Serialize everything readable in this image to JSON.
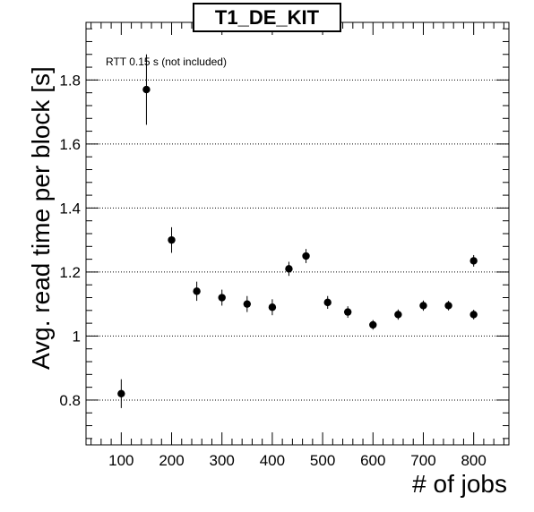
{
  "chart_data": {
    "type": "scatter",
    "title": "T1_DE_KIT",
    "xlabel": "# of jobs",
    "ylabel": "Avg. read time per block [s]",
    "annotation": "RTT 0.15 s (not included)",
    "xlim": [
      30,
      870
    ],
    "ylim": [
      0.66,
      1.98
    ],
    "x_ticks": [
      100,
      200,
      300,
      400,
      500,
      600,
      700,
      800
    ],
    "y_ticks": [
      0.8,
      1.0,
      1.2,
      1.4,
      1.6,
      1.8
    ],
    "y_tick_labels": [
      "0.8",
      "1",
      "1.2",
      "1.4",
      "1.6",
      "1.8"
    ],
    "grid": "horizontal-dotted",
    "series": [
      {
        "points": [
          {
            "x": 100,
            "y": 0.82,
            "err": 0.045
          },
          {
            "x": 150,
            "y": 1.77,
            "err": 0.11
          },
          {
            "x": 200,
            "y": 1.3,
            "err": 0.04
          },
          {
            "x": 250,
            "y": 1.14,
            "err": 0.03
          },
          {
            "x": 300,
            "y": 1.12,
            "err": 0.025
          },
          {
            "x": 350,
            "y": 1.1,
            "err": 0.025
          },
          {
            "x": 400,
            "y": 1.09,
            "err": 0.025
          },
          {
            "x": 433,
            "y": 1.21,
            "err": 0.022
          },
          {
            "x": 467,
            "y": 1.25,
            "err": 0.022
          },
          {
            "x": 510,
            "y": 1.105,
            "err": 0.02
          },
          {
            "x": 550,
            "y": 1.075,
            "err": 0.018
          },
          {
            "x": 600,
            "y": 1.035,
            "err": 0.015
          },
          {
            "x": 650,
            "y": 1.067,
            "err": 0.016
          },
          {
            "x": 700,
            "y": 1.095,
            "err": 0.016
          },
          {
            "x": 750,
            "y": 1.095,
            "err": 0.015
          },
          {
            "x": 800,
            "y": 1.235,
            "err": 0.018
          },
          {
            "x": 800,
            "y": 1.067,
            "err": 0.015
          }
        ]
      }
    ]
  }
}
